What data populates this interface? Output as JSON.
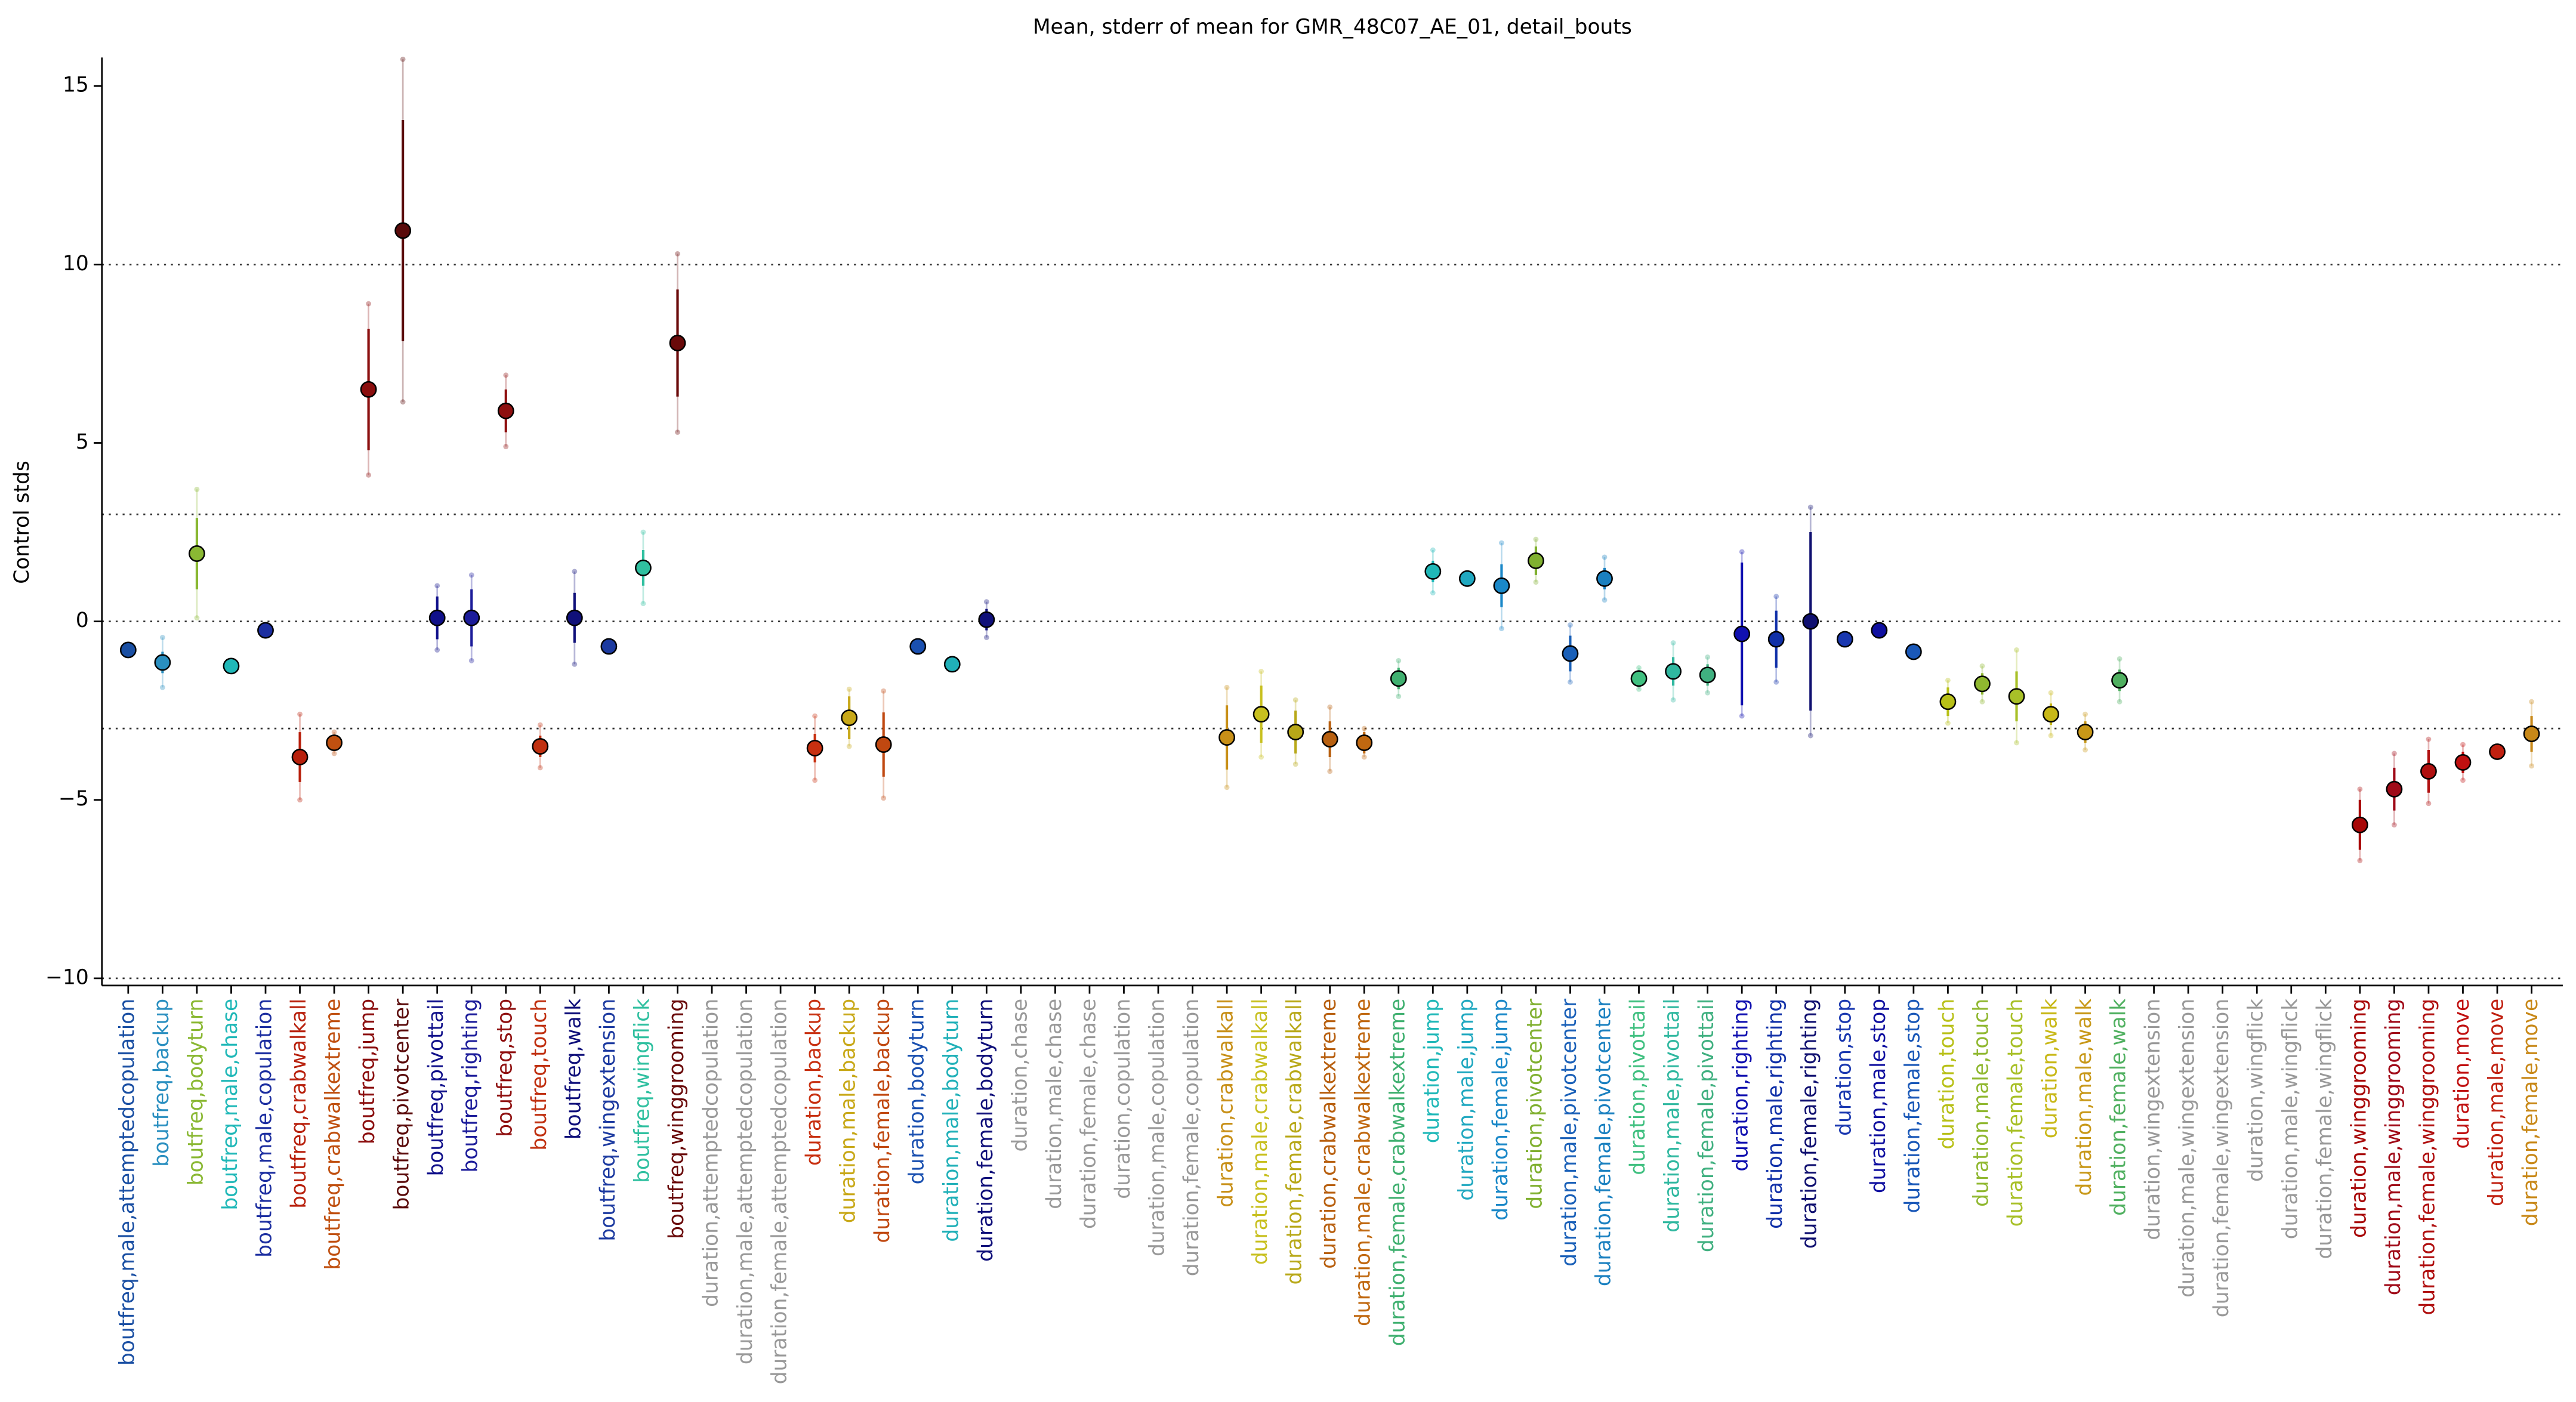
{
  "chart_data": {
    "type": "errorbar",
    "title": "Mean, stderr of mean for GMR_48C07_AE_01, detail_bouts",
    "ylabel": "Control stds",
    "categories": [
      "boutfreq,male,attemptedcopulation",
      "boutfreq,backup",
      "boutfreq,bodyturn",
      "boutfreq,male,chase",
      "boutfreq,male,copulation",
      "boutfreq,crabwalkall",
      "boutfreq,crabwalkextreme",
      "boutfreq,jump",
      "boutfreq,pivotcenter",
      "boutfreq,pivottail",
      "boutfreq,righting",
      "boutfreq,stop",
      "boutfreq,touch",
      "boutfreq,walk",
      "boutfreq,wingextension",
      "boutfreq,wingflick",
      "boutfreq,winggrooming",
      "duration,attemptedcopulation",
      "duration,male,attemptedcopulation",
      "duration,female,attemptedcopulation",
      "duration,backup",
      "duration,male,backup",
      "duration,female,backup",
      "duration,bodyturn",
      "duration,male,bodyturn",
      "duration,female,bodyturn",
      "duration,chase",
      "duration,male,chase",
      "duration,female,chase",
      "duration,copulation",
      "duration,male,copulation",
      "duration,female,copulation",
      "duration,crabwalkall",
      "duration,male,crabwalkall",
      "duration,female,crabwalkall",
      "duration,crabwalkextreme",
      "duration,male,crabwalkextreme",
      "duration,female,crabwalkextreme",
      "duration,jump",
      "duration,male,jump",
      "duration,female,jump",
      "duration,pivotcenter",
      "duration,male,pivotcenter",
      "duration,female,pivotcenter",
      "duration,pivottail",
      "duration,male,pivottail",
      "duration,female,pivottail",
      "duration,righting",
      "duration,male,righting",
      "duration,female,righting",
      "duration,stop",
      "duration,male,stop",
      "duration,female,stop",
      "duration,touch",
      "duration,male,touch",
      "duration,female,touch",
      "duration,walk",
      "duration,male,walk",
      "duration,female,walk",
      "duration,wingextension",
      "duration,male,wingextension",
      "duration,female,wingextension",
      "duration,wingflick",
      "duration,male,wingflick",
      "duration,female,wingflick",
      "duration,winggrooming",
      "duration,male,winggrooming",
      "duration,female,winggrooming",
      "duration,move",
      "duration,male,move",
      "duration,female,move"
    ],
    "values": [
      -0.8,
      -1.15,
      1.9,
      -1.25,
      -0.25,
      -3.8,
      -3.4,
      6.5,
      10.95,
      0.1,
      0.1,
      5.9,
      -3.5,
      0.1,
      -0.7,
      1.5,
      7.8,
      null,
      null,
      null,
      -3.55,
      -2.7,
      -3.45,
      -0.7,
      -1.2,
      0.05,
      null,
      null,
      null,
      null,
      null,
      null,
      -3.25,
      -2.6,
      -3.1,
      -3.3,
      -3.4,
      -1.6,
      1.4,
      1.2,
      1.0,
      1.7,
      -0.9,
      1.2,
      -1.6,
      -1.4,
      -1.5,
      -0.35,
      -0.5,
      0.0,
      -0.5,
      -0.25,
      -0.85,
      -2.25,
      -1.75,
      -2.1,
      -2.6,
      -3.1,
      -1.65,
      null,
      null,
      null,
      null,
      null,
      null,
      -5.7,
      -4.7,
      -4.2,
      -3.95,
      -3.65,
      -3.15
    ],
    "errors": [
      0.1,
      0.3,
      1.0,
      0.1,
      0.1,
      0.7,
      0.2,
      1.7,
      3.1,
      0.6,
      0.8,
      0.6,
      0.3,
      0.7,
      0.1,
      0.5,
      1.5,
      null,
      null,
      null,
      0.4,
      0.6,
      0.9,
      0.1,
      0.1,
      0.3,
      null,
      null,
      null,
      null,
      null,
      null,
      0.9,
      0.8,
      0.6,
      0.5,
      0.3,
      0.3,
      0.3,
      0.1,
      0.6,
      0.4,
      0.5,
      0.3,
      0.2,
      0.4,
      0.3,
      2.0,
      0.8,
      2.5,
      0.1,
      0.1,
      0.1,
      0.4,
      0.3,
      0.7,
      0.3,
      0.3,
      0.3,
      null,
      null,
      null,
      null,
      null,
      null,
      0.7,
      0.6,
      0.6,
      0.3,
      0.1,
      0.5
    ],
    "outer_errors": [
      0.15,
      0.7,
      1.8,
      0.1,
      0.1,
      1.2,
      0.3,
      2.4,
      4.8,
      0.9,
      1.2,
      1.0,
      0.6,
      1.3,
      0.1,
      1.0,
      2.5,
      null,
      null,
      null,
      0.9,
      0.8,
      1.5,
      0.1,
      0.1,
      0.5,
      null,
      null,
      null,
      null,
      null,
      null,
      1.4,
      1.2,
      0.9,
      0.9,
      0.4,
      0.5,
      0.6,
      0.1,
      1.2,
      0.6,
      0.8,
      0.6,
      0.3,
      0.8,
      0.5,
      2.3,
      1.2,
      3.2,
      0.1,
      0.1,
      0.1,
      0.6,
      0.5,
      1.3,
      0.6,
      0.5,
      0.6,
      null,
      null,
      null,
      null,
      null,
      null,
      1.0,
      1.0,
      0.9,
      0.5,
      0.1,
      0.9
    ],
    "colors": [
      "#1a4fa3",
      "#2a8fc0",
      "#8ab833",
      "#20b8b8",
      "#1c2ea0",
      "#b8200c",
      "#c05010",
      "#8b0e0e",
      "#5a0a0a",
      "#10108a",
      "#1c1c9a",
      "#8f1010",
      "#c03010",
      "#10107a",
      "#1c3aa0",
      "#30c0a0",
      "#6a0a0a",
      "#999999",
      "#999999",
      "#999999",
      "#c83010",
      "#c8a818",
      "#c04810",
      "#1a50b0",
      "#20b0b8",
      "#10107a",
      "#999999",
      "#999999",
      "#999999",
      "#999999",
      "#999999",
      "#999999",
      "#c89018",
      "#c8c020",
      "#b8a818",
      "#b86010",
      "#c06810",
      "#40b070",
      "#20b8b8",
      "#20a8c0",
      "#1a88c8",
      "#80b030",
      "#1a60b8",
      "#1a80c0",
      "#40c080",
      "#30b8a0",
      "#40b080",
      "#1010b0",
      "#1030a8",
      "#101070",
      "#1a38b0",
      "#1010a0",
      "#1a58b8",
      "#b8c018",
      "#90b830",
      "#a8c028",
      "#c8b818",
      "#c89818",
      "#50b060",
      "#999999",
      "#999999",
      "#999999",
      "#999999",
      "#999999",
      "#999999",
      "#a80808",
      "#a00a18",
      "#b01010",
      "#c01010",
      "#c02010",
      "#c88818"
    ],
    "ylim": [
      -10.2,
      15.8
    ],
    "yticks": [
      15,
      10,
      5,
      0,
      {
        "value": -5,
        "label": "−5"
      },
      {
        "value": -10,
        "label": "−10"
      }
    ],
    "hlines": [
      10,
      3,
      0,
      -3,
      -10
    ]
  }
}
